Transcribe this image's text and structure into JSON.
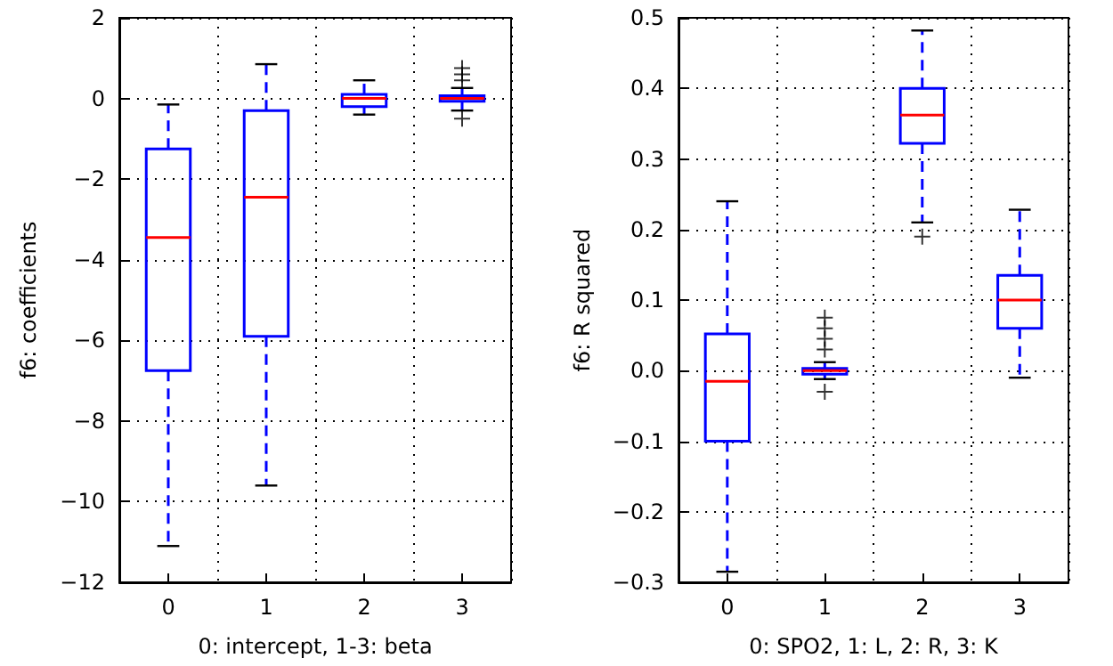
{
  "chart_data": [
    {
      "type": "box",
      "xlabel": "0: intercept, 1-3: beta",
      "ylabel": "f6: coefficients",
      "categories": [
        "0",
        "1",
        "2",
        "3"
      ],
      "color": "#0000ff",
      "boxes": [
        {
          "low": -11.1,
          "q1": -6.75,
          "median": -3.45,
          "q3": -1.25,
          "high": -0.15
        },
        {
          "low": -9.6,
          "q1": -5.9,
          "median": -2.45,
          "q3": -0.3,
          "high": 0.85
        },
        {
          "low": -0.4,
          "q1": -0.2,
          "median": 0,
          "q3": 0.1,
          "high": 0.45
        },
        {
          "low": -0.3,
          "q1": -0.07,
          "median": 0,
          "q3": 0.07,
          "high": 0.26,
          "outliers": [
            0.45,
            0.6,
            0.75,
            -0.5
          ]
        }
      ],
      "ylim": [
        -12,
        2
      ],
      "yticks": [
        {
          "value": -12,
          "label": "−12"
        },
        {
          "value": -10,
          "label": "−10"
        },
        {
          "value": -8,
          "label": "−8"
        },
        {
          "value": -6,
          "label": "−6"
        },
        {
          "value": -4,
          "label": "−4"
        },
        {
          "value": -2,
          "label": "−2"
        },
        0,
        2
      ],
      "grid": true
    },
    {
      "type": "box",
      "xlabel": "0: SPO2, 1: L, 2: R, 3: K",
      "ylabel": "f6: R squared",
      "categories": [
        "0",
        "1",
        "2",
        "3"
      ],
      "color": "#0000ff",
      "boxes": [
        {
          "low": -0.285,
          "q1": -0.1,
          "median": -0.015,
          "q3": 0.052,
          "high": 0.24
        },
        {
          "low": -0.012,
          "q1": -0.005,
          "median": 0,
          "q3": 0.003,
          "high": 0.012,
          "outliers": [
            0.03,
            0.045,
            0.06,
            0.075,
            -0.03
          ]
        },
        {
          "low": 0.21,
          "q1": 0.322,
          "median": 0.362,
          "q3": 0.4,
          "high": 0.482,
          "outliers": [
            0.19
          ]
        },
        {
          "low": -0.01,
          "q1": 0.06,
          "median": 0.1,
          "q3": 0.135,
          "high": 0.228
        }
      ],
      "ylim": [
        -0.3,
        0.5
      ],
      "yticks": [
        {
          "value": -0.3,
          "label": "−0.3"
        },
        {
          "value": -0.2,
          "label": "−0.2"
        },
        {
          "value": -0.1,
          "label": "−0.1"
        },
        {
          "value": 0,
          "label": "0.0"
        },
        {
          "value": 0.1,
          "label": "0.1"
        },
        {
          "value": 0.2,
          "label": "0.2"
        },
        {
          "value": 0.3,
          "label": "0.3"
        },
        {
          "value": 0.4,
          "label": "0.4"
        },
        {
          "value": 0.5,
          "label": "0.5"
        }
      ],
      "grid": true
    }
  ]
}
